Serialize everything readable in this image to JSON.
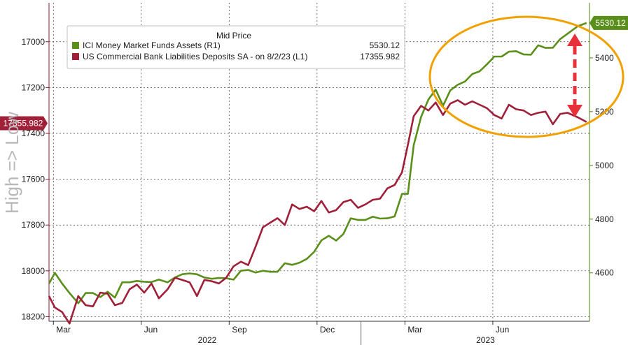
{
  "chart_data": {
    "type": "line",
    "left_axis_title": "High => Low",
    "legend": {
      "header": "Mid Price",
      "entries": [
        {
          "label": "ICI Money Market Funds Assets  (R1)",
          "value": "5530.12",
          "color": "#5a8f1a"
        },
        {
          "label": "US Commercial Bank Liabilities Deposits SA -  on 8/2/23  (L1)",
          "value": "17355.982",
          "color": "#a0203a"
        }
      ]
    },
    "x_ticks": [
      {
        "label": "Mar",
        "t": 2
      },
      {
        "label": "Jun",
        "t": 5
      },
      {
        "label": "Sep",
        "t": 8
      },
      {
        "label": "Dec",
        "t": 11
      },
      {
        "label": "Mar",
        "t": 14
      },
      {
        "label": "Jun",
        "t": 17
      }
    ],
    "x_year_labels": [
      {
        "label": "2022",
        "t": 7.25
      },
      {
        "label": "2023",
        "t": 16.75
      }
    ],
    "x_range": [
      1.85,
      20.3
    ],
    "left_axis": {
      "inverted": true,
      "range": [
        16830,
        18220
      ],
      "ticks": [
        "17000",
        "17200",
        "17400",
        "17600",
        "17800",
        "18000",
        "18200"
      ]
    },
    "right_axis": {
      "range": [
        4420,
        5605
      ],
      "ticks": [
        "5400",
        "5200",
        "5000",
        "4800",
        "4600"
      ]
    },
    "last_value_badges": {
      "left": "17355.982",
      "right": "5530.12"
    },
    "series": [
      {
        "name": "ICI Money Market Funds Assets  (R1)",
        "axis": "right",
        "color": "#5a8f1a",
        "x": [
          1.85,
          2.05,
          2.3,
          2.55,
          2.85,
          3.1,
          3.35,
          3.6,
          3.85,
          4.1,
          4.35,
          4.6,
          4.85,
          5.1,
          5.35,
          5.6,
          5.9,
          6.15,
          6.4,
          6.65,
          6.9,
          7.15,
          7.4,
          7.65,
          7.9,
          8.15,
          8.4,
          8.65,
          8.9,
          9.15,
          9.4,
          9.65,
          9.9,
          10.15,
          10.4,
          10.65,
          10.9,
          11.15,
          11.4,
          11.65,
          11.9,
          12.15,
          12.4,
          12.65,
          12.9,
          13.15,
          13.4,
          13.65,
          13.9,
          14.1,
          14.3,
          14.55,
          14.8,
          15.05,
          15.3,
          15.55,
          15.8,
          16.05,
          16.3,
          16.55,
          16.8,
          17.05,
          17.3,
          17.55,
          17.8,
          18.05,
          18.3,
          18.55,
          18.8,
          19.05,
          19.3,
          19.55,
          19.9,
          20.2
        ],
        "values": [
          4560,
          4600,
          4560,
          4525,
          4487,
          4525,
          4525,
          4510,
          4530,
          4508,
          4565,
          4565,
          4570,
          4567,
          4566,
          4575,
          4565,
          4583,
          4595,
          4598,
          4595,
          4583,
          4578,
          4581,
          4580,
          4575,
          4608,
          4611,
          4601,
          4608,
          4604,
          4604,
          4636,
          4630,
          4638,
          4652,
          4678,
          4721,
          4738,
          4720,
          4745,
          4803,
          4797,
          4797,
          4809,
          4802,
          4803,
          4810,
          4894,
          4894,
          5075,
          5180,
          5245,
          5282,
          5222,
          5279,
          5300,
          5312,
          5340,
          5350,
          5376,
          5405,
          5405,
          5423,
          5425,
          5413,
          5412,
          5447,
          5437,
          5438,
          5470,
          5490,
          5518,
          5530
        ]
      },
      {
        "name": "US Commercial Bank Liabilities Deposits SA -  on 8/2/23  (L1)",
        "axis": "left",
        "color": "#a0203a",
        "x": [
          1.85,
          2.05,
          2.3,
          2.55,
          2.85,
          3.1,
          3.35,
          3.6,
          3.85,
          4.1,
          4.35,
          4.6,
          4.85,
          5.1,
          5.35,
          5.6,
          5.9,
          6.15,
          6.4,
          6.65,
          6.9,
          7.15,
          7.4,
          7.65,
          7.9,
          8.15,
          8.4,
          8.65,
          8.9,
          9.15,
          9.4,
          9.65,
          9.9,
          10.15,
          10.4,
          10.65,
          10.9,
          11.15,
          11.4,
          11.65,
          11.9,
          12.15,
          12.4,
          12.65,
          12.9,
          13.15,
          13.4,
          13.65,
          13.9,
          14.1,
          14.3,
          14.55,
          14.8,
          15.05,
          15.3,
          15.55,
          15.8,
          16.05,
          16.3,
          16.55,
          16.8,
          17.05,
          17.3,
          17.55,
          17.8,
          18.05,
          18.3,
          18.55,
          18.8,
          19.05,
          19.3,
          19.55,
          19.9,
          20.2
        ],
        "values": [
          18110,
          18160,
          18180,
          18230,
          18110,
          18150,
          18155,
          18095,
          18100,
          18150,
          18140,
          18080,
          18060,
          18095,
          18055,
          18120,
          18080,
          18030,
          18040,
          18050,
          18110,
          18040,
          18045,
          18055,
          18030,
          17980,
          17960,
          17975,
          17895,
          17810,
          17790,
          17770,
          17800,
          17710,
          17730,
          17720,
          17740,
          17695,
          17745,
          17735,
          17700,
          17690,
          17725,
          17710,
          17690,
          17685,
          17640,
          17625,
          17570,
          17450,
          17325,
          17280,
          17300,
          17265,
          17320,
          17270,
          17255,
          17275,
          17260,
          17275,
          17290,
          17320,
          17335,
          17275,
          17295,
          17300,
          17320,
          17310,
          17305,
          17360,
          17315,
          17310,
          17330,
          17350
        ]
      }
    ],
    "annotations": {
      "ellipse_color": "#f0a000",
      "arrow_color": "#e8303a"
    }
  }
}
